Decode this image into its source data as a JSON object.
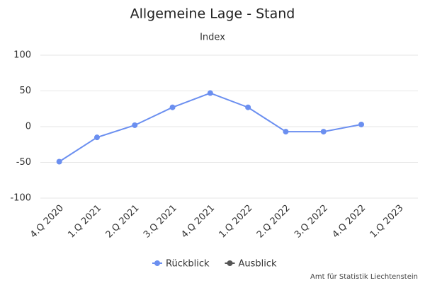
{
  "chart_data": {
    "type": "line",
    "title": "Allgemeine Lage - Stand",
    "subtitle": "Index",
    "categories": [
      "4.Q 2020",
      "1.Q 2021",
      "2.Q 2021",
      "3.Q 2021",
      "4.Q 2021",
      "1.Q 2022",
      "2.Q 2022",
      "3.Q 2022",
      "4.Q 2022",
      "1.Q 2023"
    ],
    "series": [
      {
        "name": "Rückblick",
        "color": "#6b8ff0",
        "values": [
          -49,
          -15,
          2,
          27,
          47,
          27,
          -7,
          -7,
          3,
          null
        ]
      },
      {
        "name": "Ausblick",
        "color": "#555555",
        "values": [
          null,
          null,
          null,
          null,
          null,
          null,
          null,
          null,
          null,
          null
        ]
      }
    ],
    "ylim": [
      -100,
      100
    ],
    "yticks": [
      -100,
      -50,
      0,
      50,
      100
    ],
    "grid": true,
    "credit": "Amt für Statistik Liechtenstein"
  }
}
